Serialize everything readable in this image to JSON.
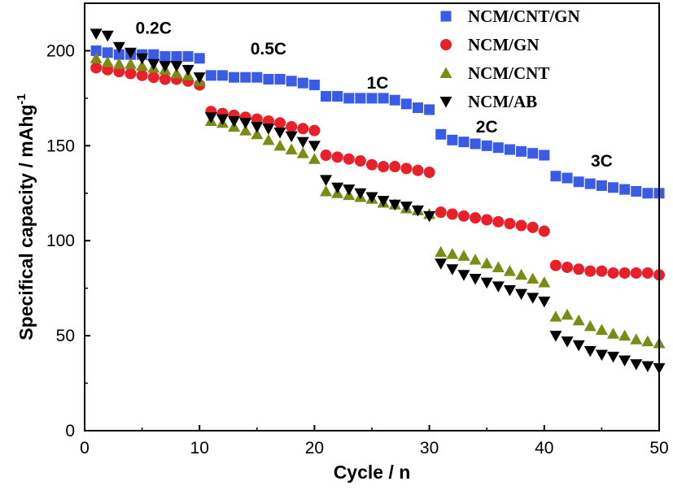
{
  "chart_data": {
    "type": "scatter",
    "xlabel": "Cycle / n",
    "ylabel_main": "Specifical capacity / mAhg",
    "ylabel_sup": "-1",
    "xlim": [
      0,
      50
    ],
    "ylim": [
      0,
      225
    ],
    "xticks": [
      0,
      10,
      20,
      30,
      40,
      50
    ],
    "yticks": [
      0,
      50,
      100,
      150,
      200
    ],
    "legend_position": "top-right",
    "rate_labels": [
      {
        "text": "0.2C",
        "x": 6,
        "y": 209
      },
      {
        "text": "0.5C",
        "x": 16,
        "y": 198
      },
      {
        "text": "1C",
        "x": 25.5,
        "y": 180
      },
      {
        "text": "2C",
        "x": 35,
        "y": 157
      },
      {
        "text": "3C",
        "x": 45,
        "y": 139
      }
    ],
    "series": [
      {
        "name": "NCM/CNT/GN",
        "marker": "square",
        "color": "#3a5be6",
        "x": [
          1,
          2,
          3,
          4,
          5,
          6,
          7,
          8,
          9,
          10,
          11,
          12,
          13,
          14,
          15,
          16,
          17,
          18,
          19,
          20,
          21,
          22,
          23,
          24,
          25,
          26,
          27,
          28,
          29,
          30,
          31,
          32,
          33,
          34,
          35,
          36,
          37,
          38,
          39,
          40,
          41,
          42,
          43,
          44,
          45,
          46,
          47,
          48,
          49,
          50
        ],
        "values": [
          200,
          199,
          198,
          198,
          198,
          198,
          197,
          197,
          197,
          196,
          187,
          187,
          186,
          186,
          186,
          185,
          185,
          184,
          183,
          182,
          176,
          176,
          175,
          175,
          175,
          175,
          174,
          172,
          170,
          169,
          156,
          153,
          152,
          151,
          150,
          149,
          148,
          147,
          146,
          145,
          134,
          133,
          131,
          130,
          129,
          128,
          127,
          126,
          125,
          125
        ]
      },
      {
        "name": "NCM/GN",
        "marker": "circle",
        "color": "#e8202a",
        "x": [
          1,
          2,
          3,
          4,
          5,
          6,
          7,
          8,
          9,
          10,
          11,
          12,
          13,
          14,
          15,
          16,
          17,
          18,
          19,
          20,
          21,
          22,
          23,
          24,
          25,
          26,
          27,
          28,
          29,
          30,
          31,
          32,
          33,
          34,
          35,
          36,
          37,
          38,
          39,
          40,
          41,
          42,
          43,
          44,
          45,
          46,
          47,
          48,
          49,
          50
        ],
        "values": [
          191,
          190,
          189,
          188,
          187,
          186,
          185,
          185,
          184,
          182,
          168,
          167,
          166,
          165,
          164,
          163,
          162,
          160,
          159,
          158,
          145,
          144,
          143,
          142,
          140,
          139,
          139,
          138,
          137,
          136,
          115,
          114,
          113,
          112,
          111,
          110,
          109,
          108,
          107,
          105,
          87,
          86,
          85,
          84,
          84,
          83,
          83,
          83,
          83,
          82
        ]
      },
      {
        "name": "NCM/CNT",
        "marker": "triangle-up",
        "color": "#7c8a16",
        "x": [
          1,
          2,
          3,
          4,
          5,
          6,
          7,
          8,
          9,
          10,
          11,
          12,
          13,
          14,
          15,
          16,
          17,
          18,
          19,
          20,
          21,
          22,
          23,
          24,
          25,
          26,
          27,
          28,
          29,
          30,
          31,
          32,
          33,
          34,
          35,
          36,
          37,
          38,
          39,
          40,
          41,
          42,
          43,
          44,
          45,
          46,
          47,
          48,
          49,
          50
        ],
        "values": [
          196,
          194,
          193,
          193,
          192,
          191,
          190,
          188,
          187,
          184,
          163,
          162,
          160,
          158,
          156,
          153,
          150,
          148,
          146,
          143,
          126,
          125,
          124,
          123,
          122,
          120,
          119,
          117,
          116,
          114,
          94,
          93,
          92,
          90,
          88,
          86,
          84,
          82,
          80,
          78,
          60,
          61,
          58,
          55,
          53,
          51,
          50,
          48,
          47,
          46
        ]
      },
      {
        "name": "NCM/AB",
        "marker": "triangle-down",
        "color": "#000000",
        "x": [
          1,
          2,
          3,
          4,
          5,
          6,
          7,
          8,
          9,
          10,
          11,
          12,
          13,
          14,
          15,
          16,
          17,
          18,
          19,
          20,
          21,
          22,
          23,
          24,
          25,
          26,
          27,
          28,
          29,
          30,
          31,
          32,
          33,
          34,
          35,
          36,
          37,
          38,
          39,
          40,
          41,
          42,
          43,
          44,
          45,
          46,
          47,
          48,
          49,
          50
        ],
        "values": [
          209,
          208,
          202,
          199,
          196,
          193,
          192,
          192,
          190,
          186,
          165,
          164,
          163,
          162,
          160,
          159,
          157,
          155,
          152,
          150,
          132,
          128,
          127,
          125,
          123,
          121,
          119,
          118,
          116,
          113,
          88,
          85,
          82,
          80,
          78,
          76,
          74,
          72,
          70,
          68,
          50,
          47,
          45,
          42,
          40,
          39,
          37,
          35,
          34,
          33
        ]
      }
    ]
  }
}
